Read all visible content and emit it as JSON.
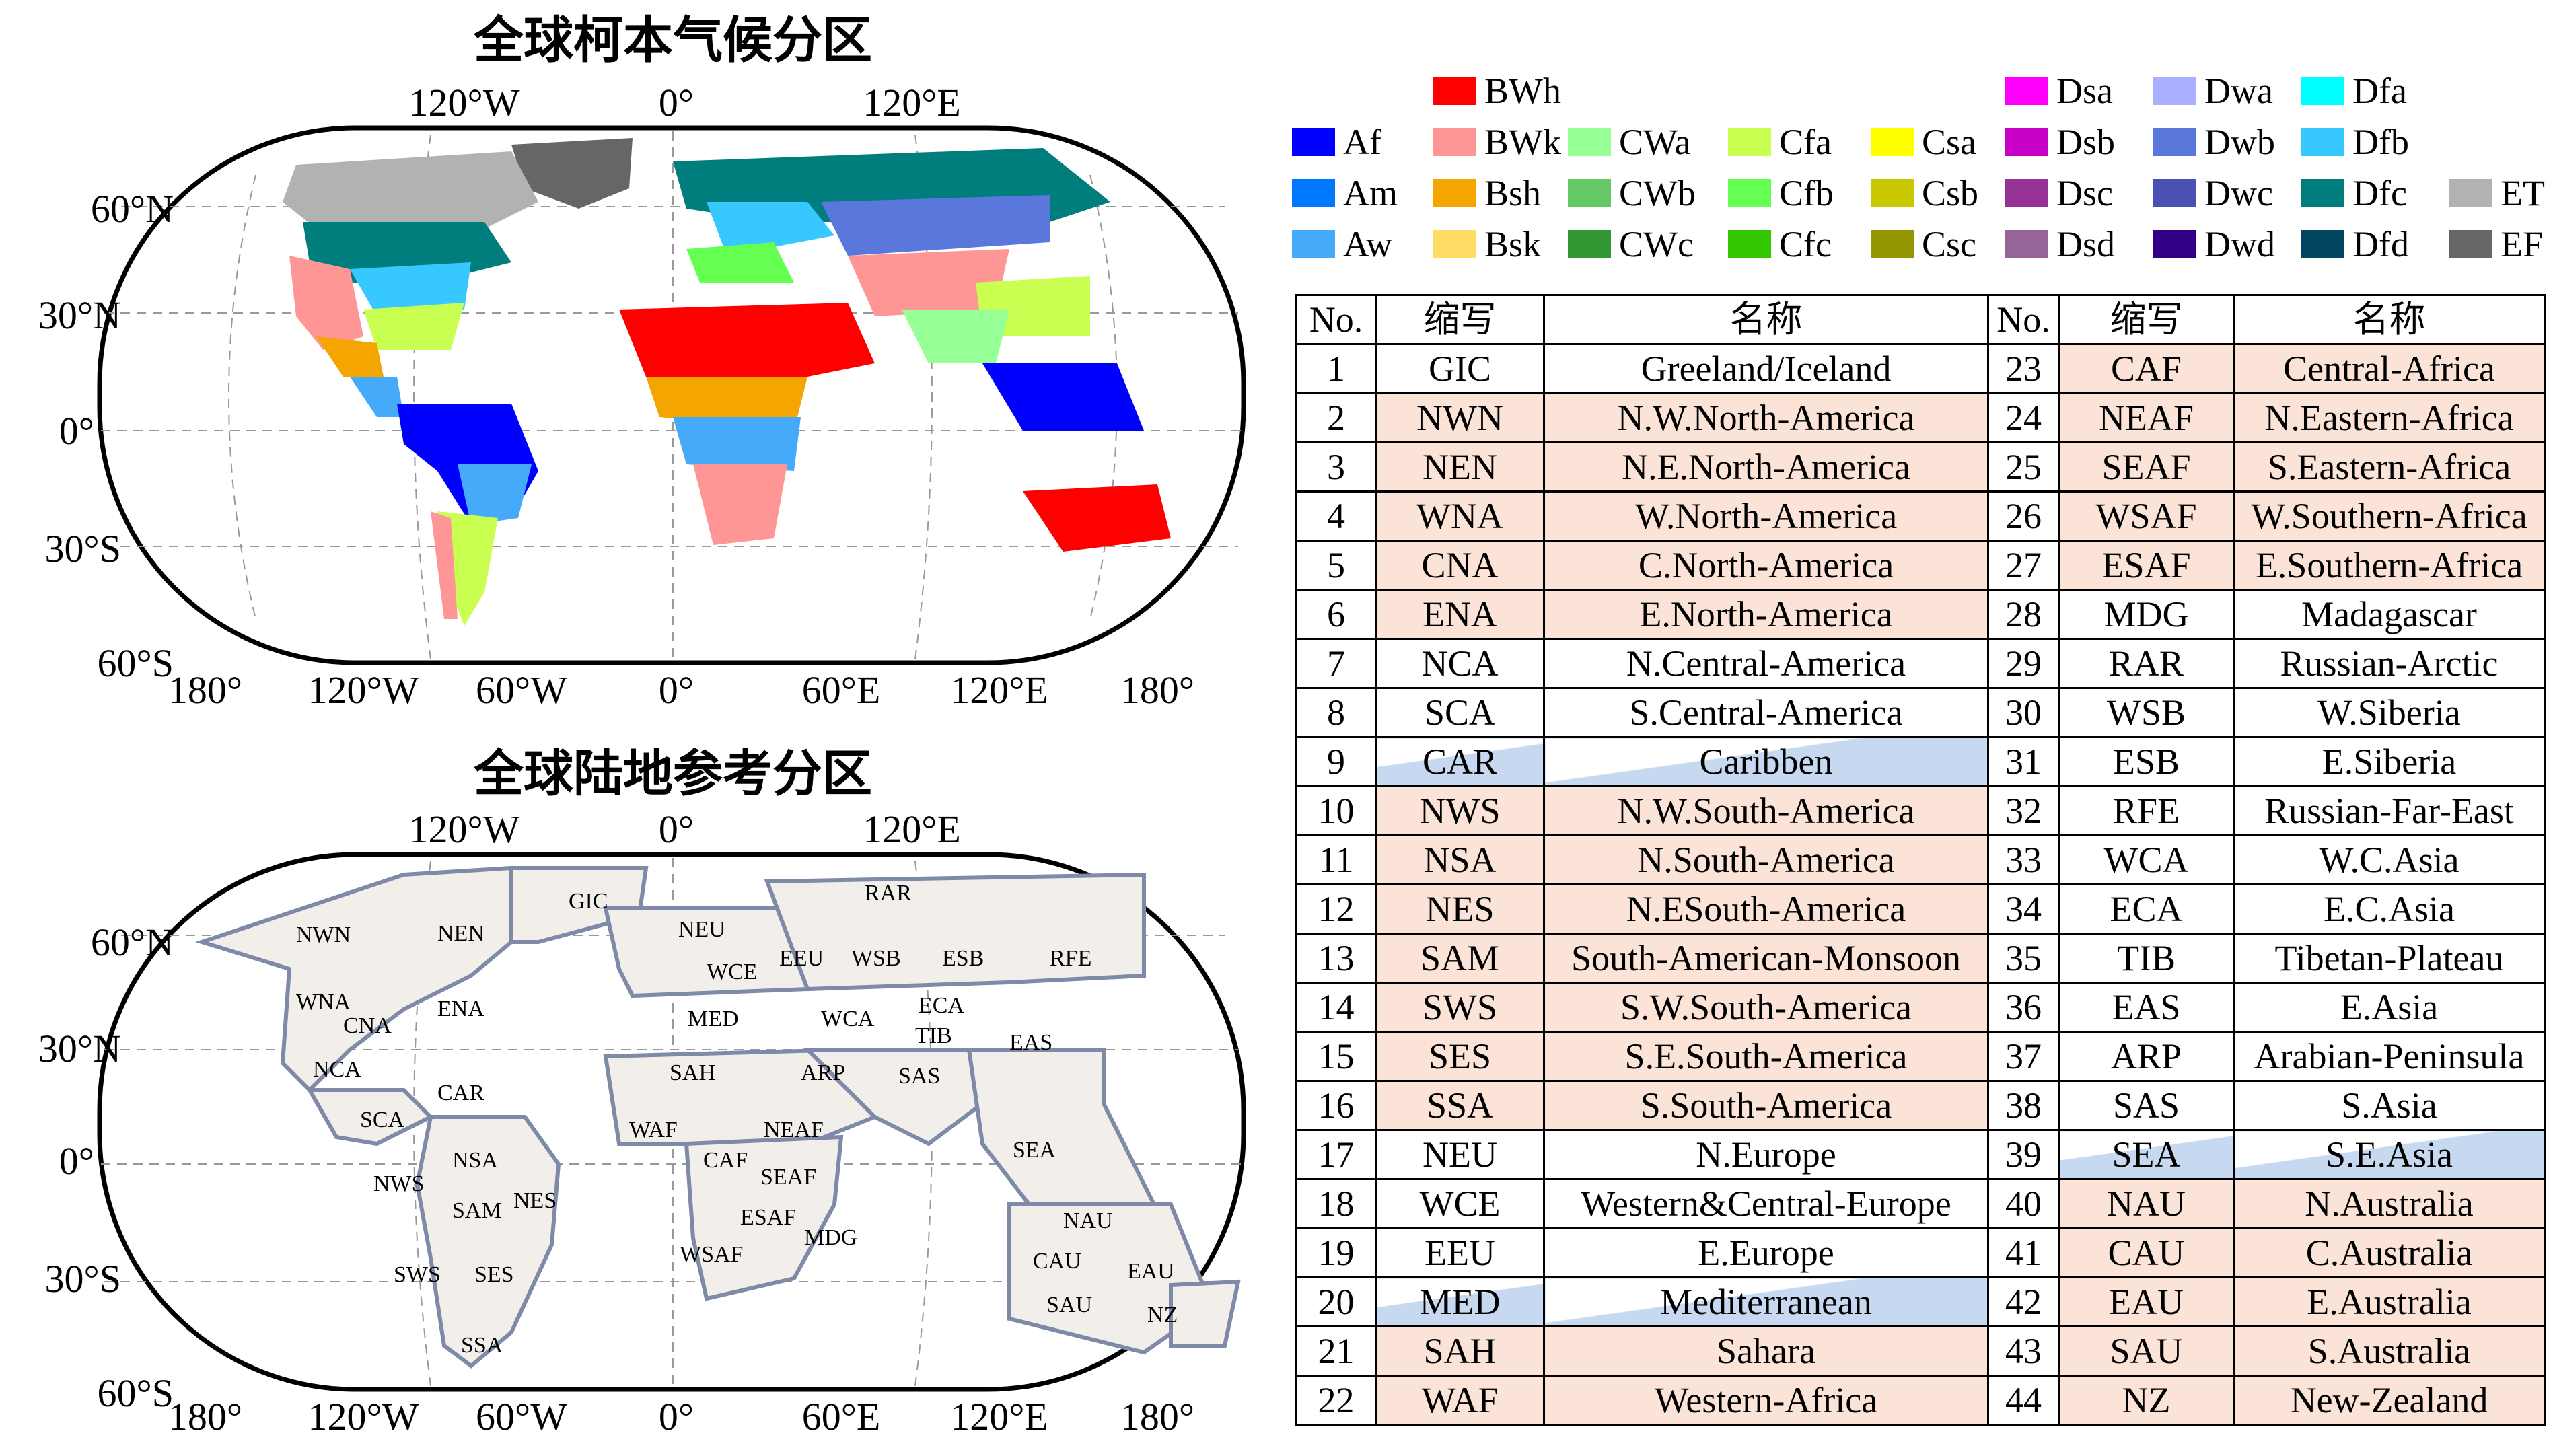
{
  "titles": {
    "koppen": "全球柯本气候分区",
    "reference": "全球陆地参考分区"
  },
  "axes": {
    "top_lon_labels": [
      "120°W",
      "0°",
      "120°E"
    ],
    "lat_labels": [
      "60°N",
      "30°N",
      "0°",
      "30°S",
      "60°S"
    ],
    "bottom_lon_labels": [
      "180°",
      "120°W",
      "60°W",
      "0°",
      "60°E",
      "120°E",
      "180°"
    ]
  },
  "legend": [
    {
      "code": "BWh",
      "color": "#ff0000"
    },
    {
      "code": "Af",
      "color": "#0000ff"
    },
    {
      "code": "BWk",
      "color": "#ff9696"
    },
    {
      "code": "CWa",
      "color": "#96ff96"
    },
    {
      "code": "Cfa",
      "color": "#c8ff50"
    },
    {
      "code": "Csa",
      "color": "#ffff00"
    },
    {
      "code": "Am",
      "color": "#0078ff"
    },
    {
      "code": "Bsh",
      "color": "#f5a500"
    },
    {
      "code": "CWb",
      "color": "#64c864"
    },
    {
      "code": "Cfb",
      "color": "#64ff50"
    },
    {
      "code": "Csb",
      "color": "#c8c800"
    },
    {
      "code": "Aw",
      "color": "#46aafa"
    },
    {
      "code": "Bsk",
      "color": "#ffdc64"
    },
    {
      "code": "CWc",
      "color": "#329632"
    },
    {
      "code": "Cfc",
      "color": "#32c800"
    },
    {
      "code": "Csc",
      "color": "#969600"
    },
    {
      "code": "Dsa",
      "color": "#ff00ff"
    },
    {
      "code": "Dwa",
      "color": "#aaafff"
    },
    {
      "code": "Dfa",
      "color": "#00ffff"
    },
    {
      "code": "Dsb",
      "color": "#c800c8"
    },
    {
      "code": "Dwb",
      "color": "#5a78dc"
    },
    {
      "code": "Dfb",
      "color": "#37c8ff"
    },
    {
      "code": "Dsc",
      "color": "#963296"
    },
    {
      "code": "Dwc",
      "color": "#4b50b4"
    },
    {
      "code": "Dfc",
      "color": "#007d7d"
    },
    {
      "code": "ET",
      "color": "#b2b2b2"
    },
    {
      "code": "Dsd",
      "color": "#966496"
    },
    {
      "code": "Dwd",
      "color": "#320087"
    },
    {
      "code": "Dfd",
      "color": "#00465f"
    },
    {
      "code": "EF",
      "color": "#666666"
    }
  ],
  "table": {
    "headers": [
      "No.",
      "缩写",
      "名称",
      "No.",
      "缩写",
      "名称"
    ],
    "rows": [
      [
        "1",
        "GIC",
        "Greeland/Iceland",
        "23",
        "CAF",
        "Central-Africa"
      ],
      [
        "2",
        "NWN",
        "N.W.North-America",
        "24",
        "NEAF",
        "N.Eastern-Africa"
      ],
      [
        "3",
        "NEN",
        "N.E.North-America",
        "25",
        "SEAF",
        "S.Eastern-Africa"
      ],
      [
        "4",
        "WNA",
        "W.North-America",
        "26",
        "WSAF",
        "W.Southern-Africa"
      ],
      [
        "5",
        "CNA",
        "C.North-America",
        "27",
        "ESAF",
        "E.Southern-Africa"
      ],
      [
        "6",
        "ENA",
        "E.North-America",
        "28",
        "MDG",
        "Madagascar"
      ],
      [
        "7",
        "NCA",
        "N.Central-America",
        "29",
        "RAR",
        "Russian-Arctic"
      ],
      [
        "8",
        "SCA",
        "S.Central-America",
        "30",
        "WSB",
        "W.Siberia"
      ],
      [
        "9",
        "CAR",
        "Caribben",
        "31",
        "ESB",
        "E.Siberia"
      ],
      [
        "10",
        "NWS",
        "N.W.South-America",
        "32",
        "RFE",
        "Russian-Far-East"
      ],
      [
        "11",
        "NSA",
        "N.South-America",
        "33",
        "WCA",
        "W.C.Asia"
      ],
      [
        "12",
        "NES",
        "N.ESouth-America",
        "34",
        "ECA",
        "E.C.Asia"
      ],
      [
        "13",
        "SAM",
        "South-American-Monsoon",
        "35",
        "TIB",
        "Tibetan-Plateau"
      ],
      [
        "14",
        "SWS",
        "S.W.South-America",
        "36",
        "EAS",
        "E.Asia"
      ],
      [
        "15",
        "SES",
        "S.E.South-America",
        "37",
        "ARP",
        "Arabian-Peninsula"
      ],
      [
        "16",
        "SSA",
        "S.South-America",
        "38",
        "SAS",
        "S.Asia"
      ],
      [
        "17",
        "NEU",
        "N.Europe",
        "39",
        "SEA",
        "S.E.Asia"
      ],
      [
        "18",
        "WCE",
        "Western&Central-Europe",
        "40",
        "NAU",
        "N.Australia"
      ],
      [
        "19",
        "EEU",
        "E.Europe",
        "41",
        "CAU",
        "C.Australia"
      ],
      [
        "20",
        "MED",
        "Mediterranean",
        "42",
        "EAU",
        "E.Australia"
      ],
      [
        "21",
        "SAH",
        "Sahara",
        "43",
        "SAU",
        "S.Australia"
      ],
      [
        "22",
        "WAF",
        "Western-Africa",
        "44",
        "NZ",
        "New-Zealand"
      ]
    ],
    "left_pink_rows": [
      2,
      3,
      4,
      5,
      6,
      10,
      11,
      12,
      13,
      14,
      15,
      16,
      21,
      22
    ],
    "left_blue_rows": [
      9,
      20
    ],
    "right_pink_rows": [
      23,
      24,
      25,
      26,
      27,
      40,
      41,
      42,
      43,
      44
    ],
    "right_blue_rows": [
      39
    ],
    "pink_color": "#fbe3d7",
    "blue_color": "#c6d9f1"
  },
  "region_labels": [
    "NWN",
    "NEN",
    "GIC",
    "WNA",
    "CNA",
    "ENA",
    "NCA",
    "CAR",
    "SCA",
    "NWS",
    "NSA",
    "NES",
    "SAM",
    "SWS",
    "SES",
    "SSA",
    "NEU",
    "WCE",
    "MED",
    "EEU",
    "WSB",
    "ESB",
    "RFE",
    "RAR",
    "ECA",
    "WCA",
    "TIB",
    "SAS",
    "EAS",
    "SAH",
    "ARP",
    "WAF",
    "CAF",
    "NEAF",
    "SEAF",
    "ESAF",
    "WSAF",
    "MDG",
    "SEA",
    "NAU",
    "CAU",
    "EAU",
    "SAU",
    "NZ"
  ]
}
